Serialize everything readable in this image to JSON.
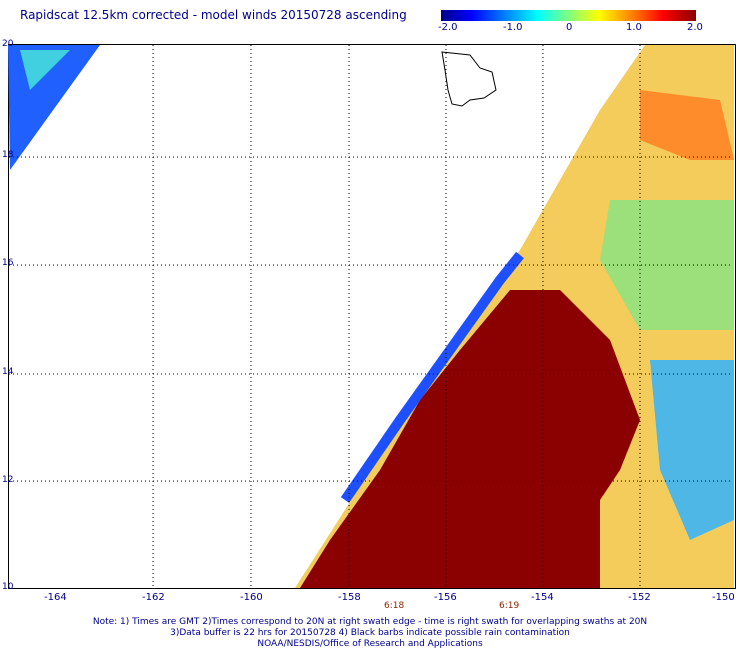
{
  "title": "Rapidscat 12.5km corrected - model winds 20150728 ascending",
  "colorbar": {
    "ticks": [
      "-2.0",
      "-1.0",
      "0",
      "1.0",
      "2.0"
    ]
  },
  "map": {
    "y_labels": [
      "20",
      "18",
      "16",
      "14",
      "12",
      "10"
    ],
    "x_labels": [
      "-164",
      "-162",
      "-160",
      "-158",
      "-156",
      "-154",
      "-152",
      "-150"
    ],
    "times": [
      "6:18",
      "6:19"
    ]
  },
  "notes": {
    "line1": "Note: 1) Times are GMT 2)Times correspond to 20N at right swath edge - time is right swath for overlapping swaths at 20N",
    "line2": "3)Data buffer is 22 hrs for 20150728 4) Black barbs indicate possible rain contamination",
    "line3": "NOAA/NESDIS/Office of Research and Applications"
  },
  "colors": {
    "dark_red": "#8b0000",
    "navy": "#00008b"
  }
}
